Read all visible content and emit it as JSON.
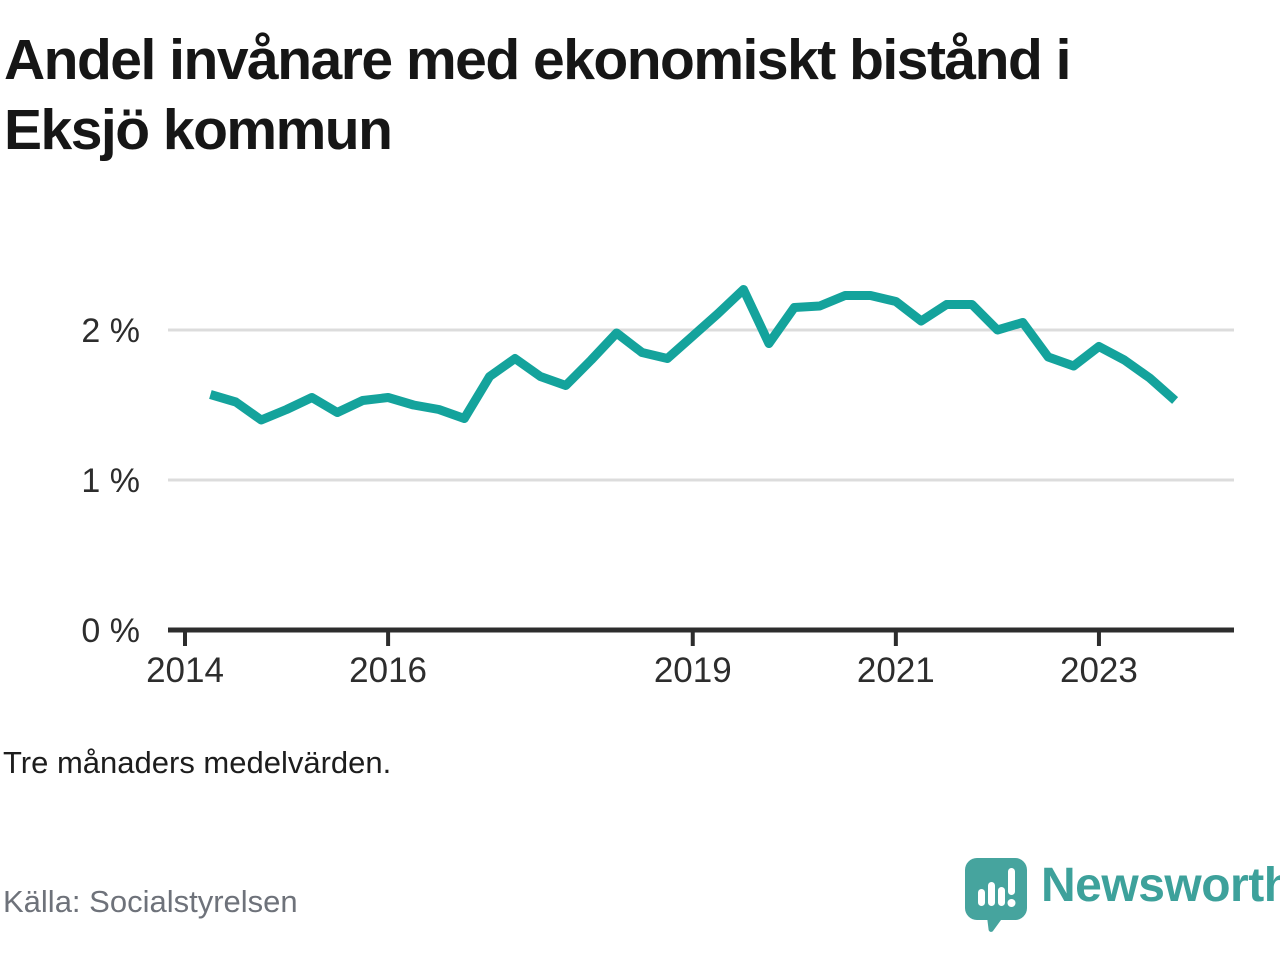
{
  "title": "Andel invånare med ekonomiskt bistånd i Eksjö kommun",
  "footnote": "Tre månaders medelvärden.",
  "source": "Källa: Socialstyrelsen",
  "logo": {
    "brand": "Newsworthy"
  },
  "colors": {
    "line": "#14a39c",
    "grid": "#dcdcdc",
    "axis": "#2d2d2d",
    "tick_label": "#2d2d2d",
    "logo_teal": "#46a49e",
    "logo_text": "#3da19b"
  },
  "chart_data": {
    "type": "line",
    "title": "Andel invånare med ekonomiskt bistånd i Eksjö kommun",
    "series_name": "Andel invånare med ekonomiskt bistånd (%)",
    "note": "Tre månaders medelvärden.",
    "x_unit": "decimal_year_quarterly",
    "x": [
      2014.25,
      2014.5,
      2014.75,
      2015.0,
      2015.25,
      2015.5,
      2015.75,
      2016.0,
      2016.25,
      2016.5,
      2016.75,
      2017.0,
      2017.25,
      2017.5,
      2017.75,
      2018.0,
      2018.25,
      2018.5,
      2018.75,
      2019.0,
      2019.25,
      2019.5,
      2019.75,
      2020.0,
      2020.25,
      2020.5,
      2020.75,
      2021.0,
      2021.25,
      2021.5,
      2021.75,
      2022.0,
      2022.25,
      2022.5,
      2022.75,
      2023.0,
      2023.25,
      2023.5,
      2023.75
    ],
    "values": [
      1.57,
      1.52,
      1.4,
      1.47,
      1.55,
      1.45,
      1.53,
      1.55,
      1.5,
      1.47,
      1.41,
      1.69,
      1.81,
      1.69,
      1.63,
      1.8,
      1.98,
      1.85,
      1.81,
      1.96,
      2.11,
      2.27,
      1.91,
      2.15,
      2.16,
      2.23,
      2.23,
      2.19,
      2.06,
      2.17,
      2.17,
      2.0,
      2.05,
      1.82,
      1.76,
      1.89,
      1.8,
      1.68,
      1.53
    ],
    "xlim": [
      2014,
      2024.1
    ],
    "ylim": [
      0,
      2.6
    ],
    "yticks": [
      {
        "value": 0,
        "label": "0 %"
      },
      {
        "value": 1,
        "label": "1 %"
      },
      {
        "value": 2,
        "label": "2 %"
      }
    ],
    "xticks": [
      {
        "value": 2014,
        "label": "2014"
      },
      {
        "value": 2016,
        "label": "2016"
      },
      {
        "value": 2019,
        "label": "2019"
      },
      {
        "value": 2021,
        "label": "2021"
      },
      {
        "value": 2023,
        "label": "2023"
      }
    ],
    "grid": "horizontal",
    "legend": "none"
  }
}
